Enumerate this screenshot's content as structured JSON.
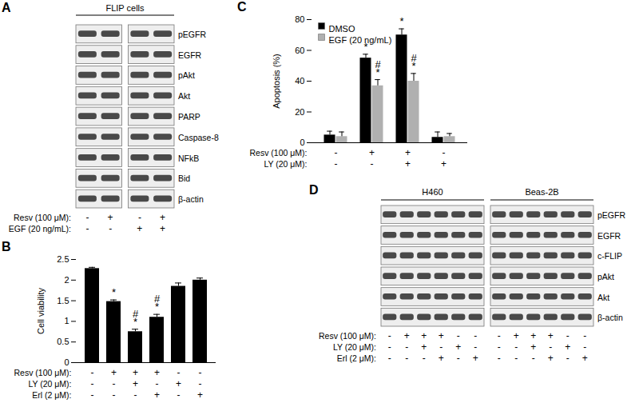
{
  "chart_data": [
    {
      "panel": "B",
      "type": "bar",
      "y_label": "Cell viability",
      "categories": [
        null,
        null,
        null,
        null,
        null,
        null
      ],
      "values": [
        2.28,
        1.48,
        0.75,
        1.1,
        1.85,
        2.0
      ],
      "errors": [
        0.03,
        0.04,
        0.06,
        0.07,
        0.08,
        0.05
      ],
      "annotations": [
        [],
        [
          "*"
        ],
        [
          "#",
          "*"
        ],
        [
          "#",
          "*"
        ],
        [],
        []
      ],
      "color": "#000000",
      "ylim": [
        0,
        2.5
      ],
      "yticks": [
        0,
        0.5,
        1,
        1.5,
        2,
        2.5
      ],
      "treatments": [
        {
          "label": "Resv (100 μM):",
          "values": [
            "-",
            "+",
            "+",
            "+",
            "-",
            "-"
          ]
        },
        {
          "label": "LY (20 μM):",
          "values": [
            "-",
            "-",
            "+",
            "-",
            "+",
            "-"
          ]
        },
        {
          "label": "Erl (2 μM):",
          "values": [
            "-",
            "-",
            "-",
            "+",
            "-",
            "+"
          ]
        }
      ]
    },
    {
      "panel": "C",
      "type": "bar",
      "y_label": "Apoptosis (%)",
      "categories": [
        null,
        null,
        null,
        null
      ],
      "series": [
        {
          "name": "DMSO",
          "color": "#000000",
          "values": [
            5,
            55,
            70,
            3.5
          ],
          "errors": [
            2.5,
            2.5,
            4,
            3.5
          ],
          "annotations": [
            [],
            [
              "*"
            ],
            [
              "*"
            ],
            []
          ]
        },
        {
          "name": "EGF (20 ng/mL)",
          "color": "#b0b0b0",
          "values": [
            4,
            37,
            40,
            4
          ],
          "errors": [
            3,
            4,
            5,
            2
          ],
          "annotations": [
            [],
            [
              "#",
              "*"
            ],
            [
              "#",
              "*"
            ],
            []
          ]
        }
      ],
      "legend": "top-left",
      "ylim": [
        0,
        80
      ],
      "yticks": [
        0,
        20,
        40,
        60,
        80
      ],
      "treatments": [
        {
          "label": "Resv (100 μM):",
          "values": [
            "-",
            "+",
            "+",
            "-"
          ]
        },
        {
          "label": "LY (20 μM):",
          "values": [
            "-",
            "-",
            "+",
            "+"
          ]
        }
      ]
    }
  ],
  "blots": [
    {
      "panel": "A",
      "header": "FLIP cells",
      "rows": [
        "pEGFR",
        "EGFR",
        "pAkt",
        "Akt",
        "PARP",
        "Caspase-8",
        "NFkB",
        "Bid",
        "β-actin"
      ],
      "treatment_labels": [
        "Resv (100 μM):",
        "EGF (20 ng/mL):"
      ],
      "groups": [
        {
          "treatments": [
            [
              "-",
              "+"
            ],
            [
              "-",
              "-"
            ]
          ]
        },
        {
          "treatments": [
            [
              "-",
              "+"
            ],
            [
              "+",
              "+"
            ]
          ]
        }
      ]
    },
    {
      "panel": "D",
      "rows": [
        "pEGFR",
        "EGFR",
        "c-FLIP",
        "pAkt",
        "Akt",
        "β-actin"
      ],
      "treatment_labels": [
        "Resv (100 μM):",
        "LY (20 μM):",
        "Erl (2 μM):"
      ],
      "groups": [
        {
          "name": "H460",
          "treatments": [
            [
              "-",
              "+",
              "+",
              "+",
              "-",
              "-"
            ],
            [
              "-",
              "-",
              "+",
              "-",
              "+",
              "-"
            ],
            [
              "-",
              "-",
              "-",
              "+",
              "-",
              "+"
            ]
          ]
        },
        {
          "name": "Beas-2B",
          "treatments": [
            [
              "-",
              "+",
              "+",
              "+",
              "-",
              "-"
            ],
            [
              "-",
              "-",
              "+",
              "-",
              "+",
              "-"
            ],
            [
              "-",
              "-",
              "-",
              "+",
              "-",
              "+"
            ]
          ]
        }
      ]
    }
  ]
}
